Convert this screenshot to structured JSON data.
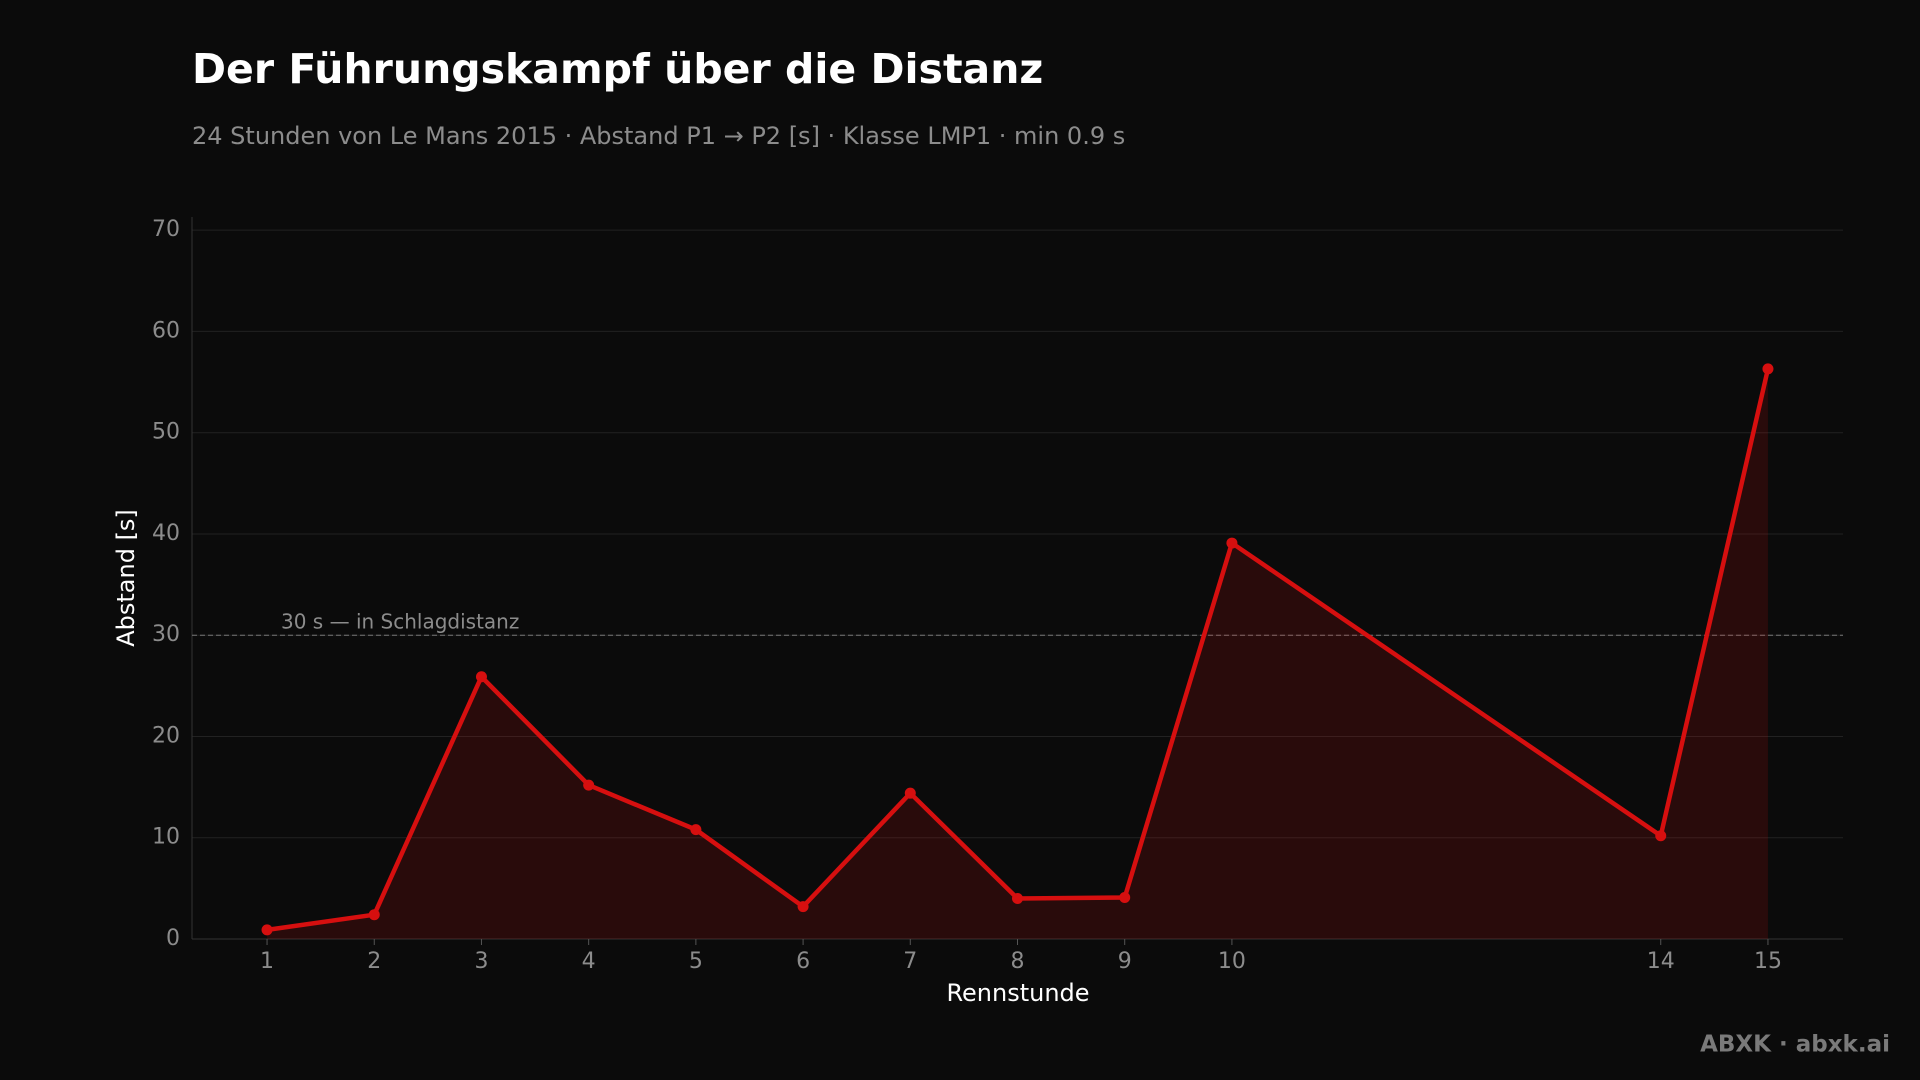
{
  "chart_data": {
    "type": "line",
    "title": "Der Führungskampf über die Distanz",
    "subtitle": "24 Stunden von Le Mans 2015 · Abstand P1 → P2 [s] · Klasse LMP1 · min 0.9 s",
    "x_label": "Rennstunde",
    "y_label": "Abstand [s]",
    "x": [
      1,
      2,
      3,
      4,
      5,
      6,
      7,
      8,
      9,
      10,
      14,
      15
    ],
    "values": [
      0.9,
      2.4,
      25.9,
      15.2,
      10.8,
      3.2,
      14.4,
      4.0,
      4.1,
      39.1,
      10.2,
      56.3
    ],
    "color": "#d60f0f",
    "xlim": [
      0.3,
      15.7
    ],
    "xticks": [
      1,
      2,
      3,
      4,
      5,
      6,
      7,
      8,
      9,
      10,
      14,
      15
    ],
    "ylim": [
      0,
      71.3
    ],
    "yticks": [
      0,
      10,
      20,
      30,
      40,
      50,
      60,
      70
    ],
    "grid": true,
    "reference_line": {
      "value": 30,
      "label": "30 s — in Schlagdistanz"
    },
    "footer": "ABXK · abxk.ai"
  }
}
